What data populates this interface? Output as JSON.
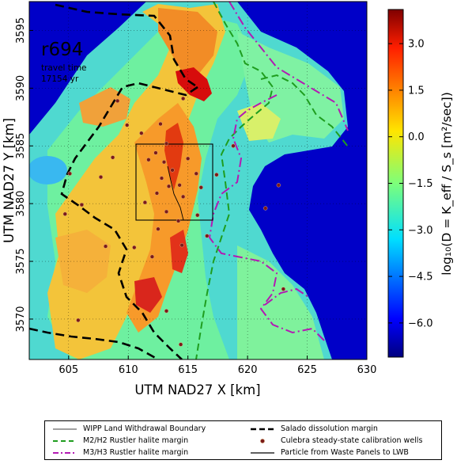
{
  "chart_data": {
    "type": "heatmap",
    "run_label": "r694",
    "annotation_line1": "travel time",
    "annotation_line2": "17154 yr",
    "xlabel": "UTM NAD27 X [km]",
    "ylabel": "UTM NAD27 Y [km]",
    "xlim": [
      601.7,
      630
    ],
    "ylim": [
      3566.5,
      3597.5
    ],
    "xticks": [
      605,
      610,
      615,
      620,
      625,
      630
    ],
    "yticks": [
      3570,
      3575,
      3580,
      3585,
      3590,
      3595
    ],
    "grid": true,
    "colorbar": {
      "label": "log₁₀(D = K_eff / S_s  [m²/sec])",
      "range": [
        -7.1,
        4.1
      ],
      "ticks": [
        3.0,
        1.5,
        0.0,
        -1.5,
        -3.0,
        -4.5,
        -6.0
      ],
      "tick_labels": [
        "3.0",
        "1.5",
        "0.0",
        "−1.5",
        "−3.0",
        "−4.5",
        "−6.0"
      ],
      "colormap": "jet"
    },
    "wipp_boundary": {
      "x": [
        610.6,
        616.9
      ],
      "y": [
        3579.4,
        3585.2
      ]
    },
    "wells": [
      [
        609.1,
        3588.9
      ],
      [
        609.9,
        3586.8
      ],
      [
        611.1,
        3586.1
      ],
      [
        612.7,
        3586.9
      ],
      [
        614.6,
        3589.1
      ],
      [
        613.2,
        3585.2
      ],
      [
        612.3,
        3584.4
      ],
      [
        611.7,
        3583.8
      ],
      [
        613.0,
        3583.6
      ],
      [
        613.7,
        3582.9
      ],
      [
        612.8,
        3582.2
      ],
      [
        613.4,
        3581.5
      ],
      [
        614.3,
        3581.6
      ],
      [
        615.0,
        3583.9
      ],
      [
        615.7,
        3582.6
      ],
      [
        616.1,
        3581.4
      ],
      [
        614.6,
        3580.6
      ],
      [
        612.4,
        3580.9
      ],
      [
        611.4,
        3580.1
      ],
      [
        613.2,
        3579.3
      ],
      [
        615.8,
        3579.0
      ],
      [
        608.7,
        3584.0
      ],
      [
        607.7,
        3582.3
      ],
      [
        605.1,
        3582.6
      ],
      [
        606.1,
        3579.9
      ],
      [
        604.7,
        3579.1
      ],
      [
        608.1,
        3576.3
      ],
      [
        610.5,
        3576.2
      ],
      [
        612.0,
        3575.4
      ],
      [
        614.2,
        3578.5
      ],
      [
        616.6,
        3577.2
      ],
      [
        614.5,
        3576.4
      ],
      [
        618.8,
        3585.0
      ],
      [
        622.6,
        3581.6
      ],
      [
        621.5,
        3579.6
      ],
      [
        605.8,
        3569.9
      ],
      [
        613.2,
        3570.7
      ],
      [
        614.4,
        3567.8
      ],
      [
        617.4,
        3582.5
      ],
      [
        612.5,
        3577.8
      ],
      [
        623.0,
        3572.6
      ]
    ],
    "legend": {
      "items": [
        "WIPP Land Withdrawal Boundary",
        "Salado dissolution margin",
        "M2/H2 Rustler halite margin",
        "Culebra steady-state calibration wells",
        "M3/H3 Rustler halite margin",
        "Particle from Waste Panels to LWB"
      ]
    },
    "colors": {
      "ocean": "#0000c8",
      "low": "#3fc8ff",
      "mid": "#66f0a8",
      "high": "#f7a52c",
      "peak": "#c80000",
      "salado_line": "#000000",
      "m2_line": "#1f9d1f",
      "m3_line": "#b31ab3",
      "well_fill": "#7a1a1a"
    }
  }
}
